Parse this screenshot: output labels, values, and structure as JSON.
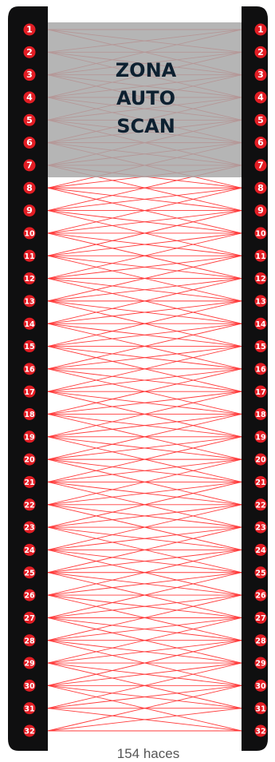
{
  "zone": {
    "lines": [
      "ZONA",
      "AUTO",
      "SCAN"
    ],
    "text_color": "#0d2030",
    "fill": "#a8a8a8"
  },
  "beam_count_label": "154 haces",
  "bars": {
    "left_labels": [
      "1",
      "2",
      "3",
      "4",
      "5",
      "6",
      "7",
      "8",
      "9",
      "10",
      "11",
      "12",
      "13",
      "14",
      "15",
      "16",
      "17",
      "18",
      "19",
      "20",
      "21",
      "22",
      "23",
      "24",
      "25",
      "26",
      "27",
      "28",
      "29",
      "30",
      "31",
      "32"
    ],
    "right_labels": [
      "1",
      "2",
      "3",
      "4",
      "5",
      "6",
      "7",
      "8",
      "9",
      "10",
      "11",
      "12",
      "13",
      "14",
      "15",
      "16",
      "17",
      "18",
      "19",
      "20",
      "21",
      "22",
      "23",
      "24",
      "25",
      "26",
      "27",
      "28",
      "29",
      "30",
      "31",
      "32"
    ],
    "bar_color": "#0f0f10",
    "badge_color": "#e21d24",
    "badge_text_color": "#ffffff"
  },
  "beam_color": "#ff3b3b",
  "caption_color": "#555555"
}
